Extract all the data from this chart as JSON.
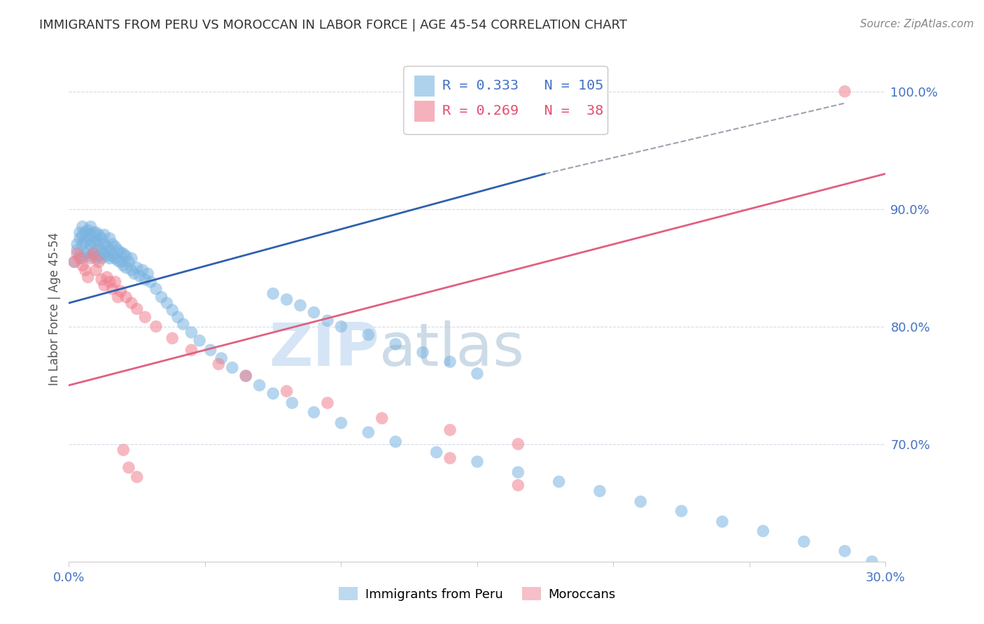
{
  "title": "IMMIGRANTS FROM PERU VS MOROCCAN IN LABOR FORCE | AGE 45-54 CORRELATION CHART",
  "source": "Source: ZipAtlas.com",
  "ylabel": "In Labor Force | Age 45-54",
  "xlim": [
    0.0,
    0.3
  ],
  "ylim": [
    0.6,
    1.03
  ],
  "xtick_vals": [
    0.0,
    0.05,
    0.1,
    0.15,
    0.2,
    0.25,
    0.3
  ],
  "xticklabels": [
    "0.0%",
    "",
    "",
    "",
    "",
    "",
    "30.0%"
  ],
  "ytick_vals": [
    0.7,
    0.8,
    0.9,
    1.0
  ],
  "yticklabels": [
    "70.0%",
    "80.0%",
    "90.0%",
    "100.0%"
  ],
  "peru_R": 0.333,
  "peru_N": 105,
  "moroccan_R": 0.269,
  "moroccan_N": 38,
  "peru_color": "#7ab4e0",
  "moroccan_color": "#f08090",
  "peru_line_color": "#3060b0",
  "moroccan_line_color": "#e06080",
  "peru_line_dash_color": "#a0a0b0",
  "watermark_zip": "ZIP",
  "watermark_atlas": "atlas",
  "watermark_color": "#d5e5f5",
  "grid_color": "#d8d8e8",
  "title_color": "#333333",
  "source_color": "#888888",
  "tick_color": "#4472c4",
  "legend_text_blue": "R = 0.333   N = 105",
  "legend_text_pink": "R = 0.269   N =  38",
  "peru_scatter_x": [
    0.002,
    0.003,
    0.003,
    0.004,
    0.004,
    0.004,
    0.005,
    0.005,
    0.005,
    0.005,
    0.006,
    0.006,
    0.006,
    0.007,
    0.007,
    0.007,
    0.008,
    0.008,
    0.008,
    0.008,
    0.009,
    0.009,
    0.009,
    0.01,
    0.01,
    0.01,
    0.01,
    0.011,
    0.011,
    0.011,
    0.012,
    0.012,
    0.012,
    0.013,
    0.013,
    0.013,
    0.014,
    0.014,
    0.015,
    0.015,
    0.015,
    0.016,
    0.016,
    0.017,
    0.017,
    0.018,
    0.018,
    0.019,
    0.019,
    0.02,
    0.02,
    0.021,
    0.021,
    0.022,
    0.023,
    0.023,
    0.024,
    0.025,
    0.026,
    0.027,
    0.028,
    0.029,
    0.03,
    0.032,
    0.034,
    0.036,
    0.038,
    0.04,
    0.042,
    0.045,
    0.048,
    0.052,
    0.056,
    0.06,
    0.065,
    0.07,
    0.075,
    0.082,
    0.09,
    0.1,
    0.11,
    0.12,
    0.135,
    0.15,
    0.165,
    0.18,
    0.195,
    0.21,
    0.225,
    0.24,
    0.255,
    0.27,
    0.285,
    0.295,
    0.15,
    0.14,
    0.13,
    0.12,
    0.11,
    0.1,
    0.095,
    0.09,
    0.085,
    0.08,
    0.075
  ],
  "peru_scatter_y": [
    0.855,
    0.865,
    0.87,
    0.86,
    0.875,
    0.88,
    0.858,
    0.87,
    0.878,
    0.885,
    0.862,
    0.872,
    0.88,
    0.865,
    0.875,
    0.882,
    0.86,
    0.87,
    0.878,
    0.885,
    0.862,
    0.872,
    0.88,
    0.858,
    0.865,
    0.873,
    0.88,
    0.86,
    0.87,
    0.878,
    0.858,
    0.865,
    0.875,
    0.862,
    0.87,
    0.878,
    0.86,
    0.868,
    0.858,
    0.865,
    0.875,
    0.86,
    0.87,
    0.858,
    0.868,
    0.856,
    0.865,
    0.855,
    0.863,
    0.852,
    0.862,
    0.85,
    0.86,
    0.855,
    0.848,
    0.858,
    0.845,
    0.85,
    0.843,
    0.848,
    0.84,
    0.845,
    0.838,
    0.832,
    0.825,
    0.82,
    0.814,
    0.808,
    0.802,
    0.795,
    0.788,
    0.78,
    0.773,
    0.765,
    0.758,
    0.75,
    0.743,
    0.735,
    0.727,
    0.718,
    0.71,
    0.702,
    0.693,
    0.685,
    0.676,
    0.668,
    0.66,
    0.651,
    0.643,
    0.634,
    0.626,
    0.617,
    0.609,
    0.6,
    0.76,
    0.77,
    0.778,
    0.785,
    0.793,
    0.8,
    0.805,
    0.812,
    0.818,
    0.823,
    0.828
  ],
  "moroccan_scatter_x": [
    0.002,
    0.003,
    0.004,
    0.005,
    0.006,
    0.007,
    0.008,
    0.009,
    0.01,
    0.011,
    0.012,
    0.013,
    0.014,
    0.015,
    0.016,
    0.017,
    0.018,
    0.019,
    0.021,
    0.023,
    0.025,
    0.028,
    0.032,
    0.038,
    0.045,
    0.055,
    0.065,
    0.08,
    0.095,
    0.115,
    0.14,
    0.165,
    0.14,
    0.02,
    0.022,
    0.025,
    0.165,
    0.285
  ],
  "moroccan_scatter_y": [
    0.855,
    0.862,
    0.858,
    0.852,
    0.848,
    0.842,
    0.858,
    0.862,
    0.848,
    0.855,
    0.84,
    0.835,
    0.842,
    0.838,
    0.832,
    0.838,
    0.825,
    0.83,
    0.825,
    0.82,
    0.815,
    0.808,
    0.8,
    0.79,
    0.78,
    0.768,
    0.758,
    0.745,
    0.735,
    0.722,
    0.712,
    0.7,
    0.688,
    0.695,
    0.68,
    0.672,
    0.665,
    1.0
  ]
}
